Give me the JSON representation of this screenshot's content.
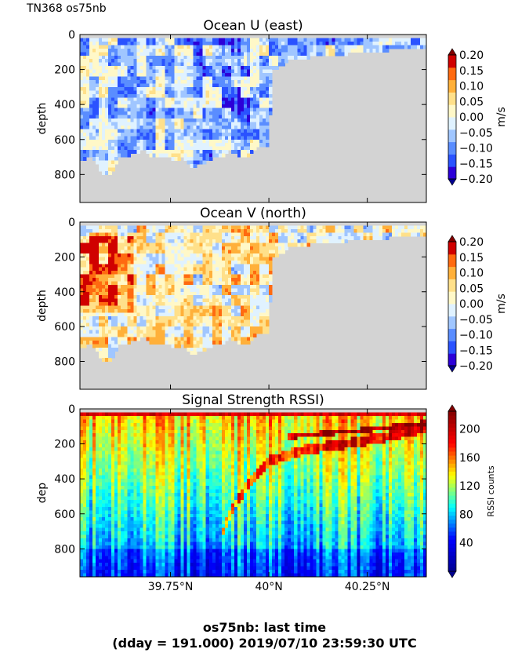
{
  "figure": {
    "corner_label": "TN368 os75nb",
    "footer_line1": "os75nb: last time",
    "footer_line2": "(dday = 191.000) 2019/07/10 23:59:30 UTC"
  },
  "colors": {
    "land": "#d3d3d3",
    "jet_stops": [
      "#00008f",
      "#0000ff",
      "#00ffff",
      "#ffff00",
      "#ff0000",
      "#800000"
    ],
    "velocity_levels": [
      "#2c00d8",
      "#2a52ff",
      "#5a8dff",
      "#a0c6ff",
      "#e0f2ff",
      "#fff8c8",
      "#ffe08a",
      "#ffb03a",
      "#ff6a10",
      "#d00000"
    ]
  },
  "chart_data": [
    {
      "type": "heatmap",
      "title": "Ocean U (east)",
      "ylabel": "depth",
      "ylim": [
        960,
        0
      ],
      "yticks": [
        "0",
        "200",
        "400",
        "600",
        "800"
      ],
      "xlim": [
        39.52,
        40.4
      ],
      "xticks": [
        39.75,
        40.0,
        40.25
      ],
      "colorbar": {
        "label": "m/s",
        "range": [
          -0.2,
          0.2
        ],
        "ticks": [
          "0.20",
          "0.15",
          "0.10",
          "0.05",
          "0.00",
          "−0.05",
          "−0.10",
          "−0.15",
          "−0.20"
        ]
      }
    },
    {
      "type": "heatmap",
      "title": "Ocean V (north)",
      "ylabel": "depth",
      "ylim": [
        960,
        0
      ],
      "yticks": [
        "0",
        "200",
        "400",
        "600",
        "800"
      ],
      "xlim": [
        39.52,
        40.4
      ],
      "xticks": [
        39.75,
        40.0,
        40.25
      ],
      "colorbar": {
        "label": "m/s",
        "range": [
          -0.2,
          0.2
        ],
        "ticks": [
          "0.20",
          "0.15",
          "0.10",
          "0.05",
          "0.00",
          "−0.05",
          "−0.10",
          "−0.15",
          "−0.20"
        ]
      }
    },
    {
      "type": "heatmap",
      "title": "Signal Strength RSSI)",
      "ylabel": "dep",
      "ylim": [
        960,
        0
      ],
      "yticks": [
        "0",
        "200",
        "400",
        "600",
        "800"
      ],
      "xlim": [
        39.52,
        40.4
      ],
      "xticks": [
        39.75,
        40.0,
        40.25
      ],
      "xticklabels": [
        "39.75°N",
        "40°N",
        "40.25°N"
      ],
      "colorbar": {
        "label": "RSSI counts",
        "range": [
          0,
          225
        ],
        "ticks": [
          "200",
          "160",
          "120",
          "80",
          "40"
        ]
      }
    }
  ],
  "bathymetry": {
    "lat": [
      39.52,
      39.55,
      39.58,
      39.6,
      39.62,
      39.65,
      39.68,
      39.7,
      39.72,
      39.74,
      39.76,
      39.78,
      39.8,
      39.83,
      39.86,
      39.88,
      39.9,
      39.93,
      39.95,
      39.97,
      39.99,
      40.0,
      40.01,
      40.05,
      40.1,
      40.15,
      40.2,
      40.3,
      40.4
    ],
    "depth": [
      720,
      700,
      800,
      800,
      700,
      690,
      660,
      700,
      700,
      690,
      730,
      700,
      760,
      740,
      700,
      700,
      660,
      700,
      690,
      640,
      650,
      640,
      210,
      150,
      130,
      120,
      110,
      90,
      70
    ]
  },
  "rssi_features": {
    "surface_layer_depth": 40,
    "diagonal_band": {
      "lat": [
        39.88,
        39.91,
        39.95,
        40.0,
        40.1,
        40.2,
        40.3,
        40.4
      ],
      "depth": [
        720,
        560,
        420,
        300,
        230,
        200,
        160,
        110
      ]
    },
    "upper_band": {
      "lat": [
        40.05,
        40.15,
        40.25,
        40.35,
        40.4
      ],
      "depth": [
        160,
        140,
        120,
        95,
        80
      ]
    }
  }
}
